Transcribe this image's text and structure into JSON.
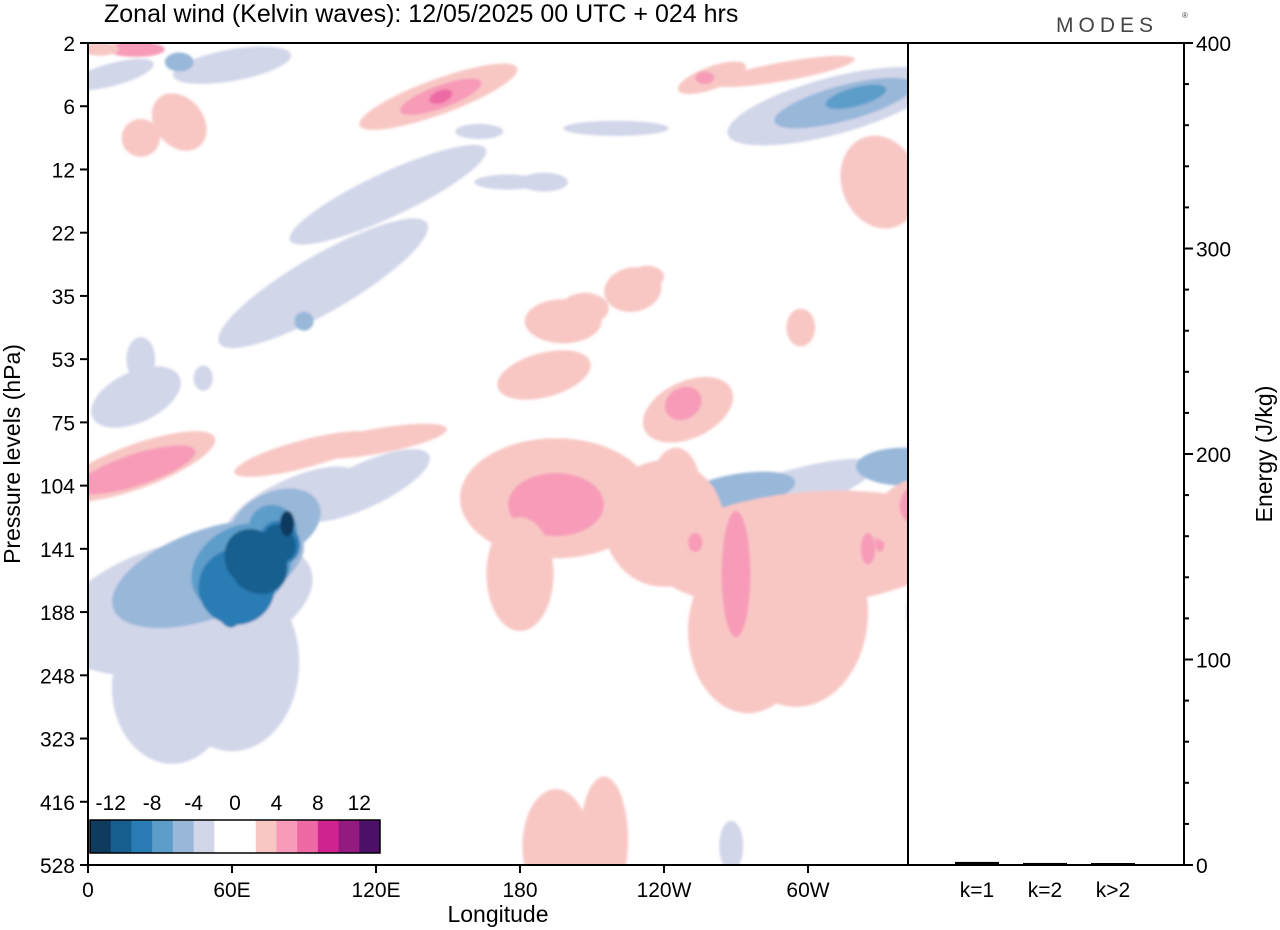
{
  "chart_data": [
    {
      "type": "heatmap",
      "title": "Zonal wind (Kelvin waves):  12/05/2025  00 UTC  + 024 hrs",
      "xlabel": "Longitude",
      "ylabel": "Pressure levels (hPa)",
      "x_ticks": [
        "0",
        "60E",
        "120E",
        "180",
        "120W",
        "60W"
      ],
      "y_ticks": [
        "2",
        "6",
        "12",
        "22",
        "35",
        "53",
        "75",
        "104",
        "141",
        "188",
        "248",
        "323",
        "416",
        "528"
      ],
      "colorbar": {
        "labels": [
          "-12",
          "-8",
          "-4",
          "0",
          "4",
          "8",
          "12"
        ],
        "colors": [
          "#0f3b5e",
          "#155e8e",
          "#2a7cb4",
          "#5d9dca",
          "#98b7d9",
          "#d2d6e9",
          "#ffffff",
          "#ffffff",
          "#f8c7c4",
          "#f79bb8",
          "#ee6aa5",
          "#cf2490",
          "#931a7f",
          "#4d0f69"
        ]
      },
      "features": [
        {
          "label": "easterly core",
          "longitude": "60E-90E",
          "pressure_range": [
            104,
            188
          ],
          "min_value": -14
        },
        {
          "label": "westerly maximum",
          "longitude": "0-30E",
          "pressure_range": [
            75,
            104
          ],
          "max_value": 8
        },
        {
          "label": "easterly band",
          "longitude": "60W-20W",
          "pressure_range": [
            75,
            104
          ],
          "min_value": -6
        },
        {
          "label": "westerly band",
          "longitude": "70W-40W",
          "pressure_range": [
            104,
            248
          ],
          "max_value": 6
        },
        {
          "label": "westerly patch",
          "longitude": "180-160W",
          "pressure_range": [
            104,
            141
          ],
          "max_value": 6
        },
        {
          "label": "upper easterly",
          "longitude": "80W-10W",
          "pressure_range": [
            4,
            7
          ],
          "min_value": -6
        }
      ]
    },
    {
      "type": "bar",
      "categories": [
        "k=1",
        "k=2",
        "k>2"
      ],
      "values": [
        1.5,
        1.0,
        0.6
      ],
      "ylabel": "Energy (J/kg)",
      "ylim": [
        0,
        400
      ],
      "y_ticks": [
        "0",
        "100",
        "200",
        "300",
        "400"
      ]
    }
  ],
  "branding": {
    "logo": "MODES"
  }
}
